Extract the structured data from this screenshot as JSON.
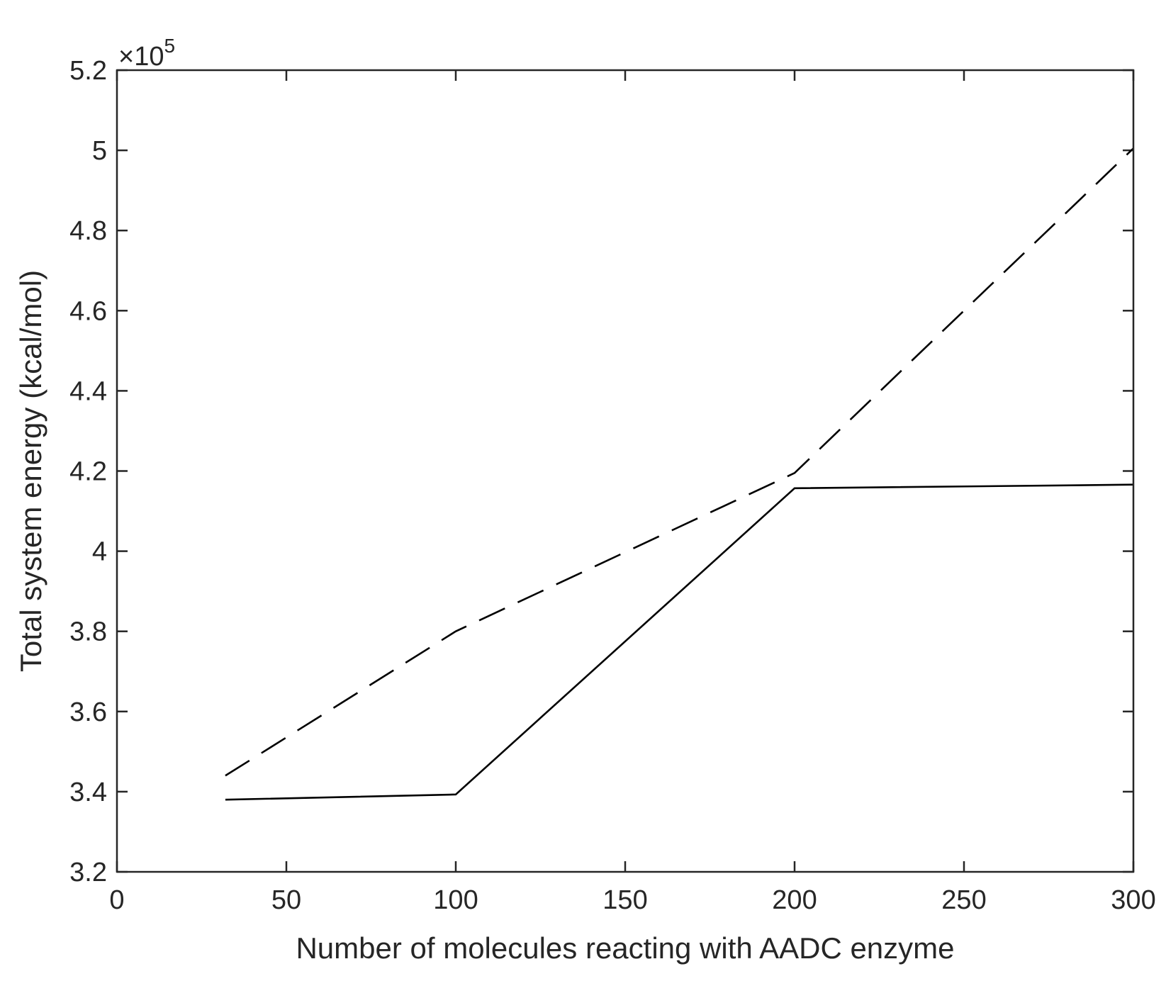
{
  "chart_data": {
    "type": "line",
    "title": "",
    "xlabel": "Number of molecules reacting with AADC enzyme",
    "ylabel": "Total system energy (kcal/mol)",
    "y_exponent_label": "×10",
    "y_exponent_power": "5",
    "xlim": [
      0,
      300
    ],
    "ylim": [
      3.2,
      5.2
    ],
    "xticks": [
      0,
      50,
      100,
      150,
      200,
      250,
      300
    ],
    "yticks": [
      3.2,
      3.4,
      3.6,
      3.8,
      4.0,
      4.2,
      4.4,
      4.6,
      4.8,
      5.0,
      5.2
    ],
    "xtick_labels": [
      "0",
      "50",
      "100",
      "150",
      "200",
      "250",
      "300"
    ],
    "ytick_labels": [
      "3.2",
      "3.4",
      "3.6",
      "3.8",
      "4",
      "4.2",
      "4.4",
      "4.6",
      "4.8",
      "5",
      "5.2"
    ],
    "grid": false,
    "legend": "none",
    "series": [
      {
        "style": "dashed",
        "color": "#000000",
        "x": [
          32,
          100,
          200,
          300
        ],
        "y": [
          3.44,
          3.8,
          4.195,
          5.005
        ]
      },
      {
        "style": "solid",
        "color": "#000000",
        "x": [
          32,
          100,
          200,
          300
        ],
        "y": [
          3.38,
          3.393,
          4.157,
          4.166
        ]
      }
    ]
  }
}
